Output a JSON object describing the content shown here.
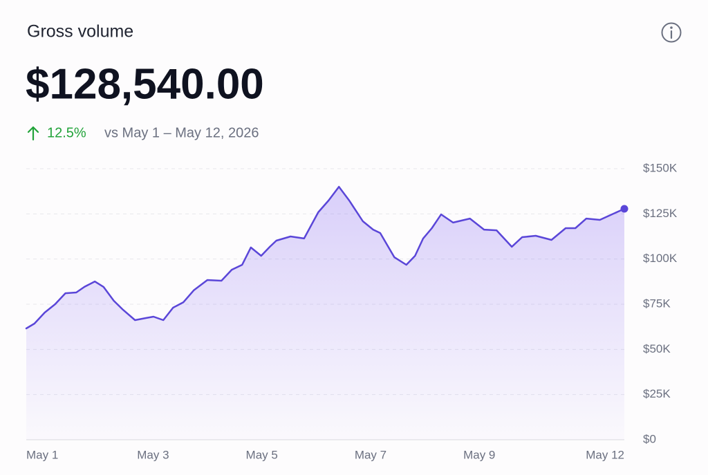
{
  "header": {
    "title": "Gross volume",
    "amount": "$128,540.00",
    "change": "12.5%",
    "comparison": "vs May 1 – May 12, 2026"
  },
  "chart_data": {
    "type": "line",
    "x": [
      1.0,
      1.15,
      1.34,
      1.53,
      1.72,
      1.92,
      2.07,
      2.26,
      2.42,
      2.61,
      2.78,
      3.0,
      3.19,
      3.34,
      3.52,
      3.7,
      3.89,
      4.08,
      4.33,
      4.59,
      4.78,
      4.97,
      5.13,
      5.32,
      5.48,
      5.6,
      5.86,
      6.11,
      6.37,
      6.56,
      6.75,
      6.94,
      7.19,
      7.38,
      7.51,
      7.77,
      7.99,
      8.15,
      8.3,
      8.46,
      8.63,
      8.85,
      9.16,
      9.42,
      9.65,
      9.93,
      10.12,
      10.37,
      10.66,
      10.92,
      11.1,
      11.3,
      11.55,
      11.77,
      12.0
    ],
    "values": [
      61600,
      64300,
      70400,
      75000,
      81100,
      81500,
      84600,
      87600,
      84600,
      76900,
      71900,
      66200,
      67300,
      68100,
      66200,
      73100,
      76100,
      82700,
      88400,
      88000,
      94100,
      96800,
      106400,
      101800,
      106800,
      110200,
      112500,
      111400,
      125900,
      132400,
      140000,
      132400,
      120900,
      116300,
      114400,
      101000,
      96800,
      101800,
      111400,
      117100,
      124700,
      120200,
      122400,
      116300,
      115900,
      106800,
      112100,
      112900,
      110600,
      117100,
      117100,
      122400,
      121700,
      124700,
      127800
    ],
    "color": "#5a46d8",
    "xlim": [
      1,
      12
    ],
    "xticks": [
      {
        "value": 1,
        "label": "May 1"
      },
      {
        "value": 3,
        "label": "May 3"
      },
      {
        "value": 5,
        "label": "May 5"
      },
      {
        "value": 7,
        "label": "May 7"
      },
      {
        "value": 9,
        "label": "May 9"
      },
      {
        "value": 12,
        "label": "May 12"
      }
    ],
    "ylim": [
      0,
      150000
    ],
    "yticks": [
      {
        "value": 0,
        "label": "$0"
      },
      {
        "value": 25000,
        "label": "$25K"
      },
      {
        "value": 50000,
        "label": "$50K"
      },
      {
        "value": 75000,
        "label": "$75K"
      },
      {
        "value": 100000,
        "label": "$100K"
      },
      {
        "value": 125000,
        "label": "$125K"
      },
      {
        "value": 150000,
        "label": "$150K"
      }
    ],
    "grid": true
  }
}
